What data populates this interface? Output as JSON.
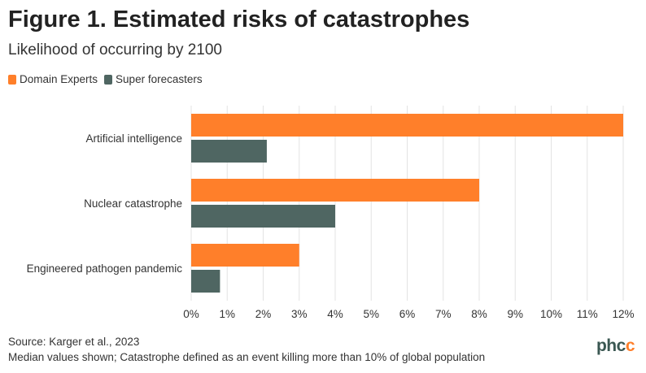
{
  "title": "Figure 1. Estimated risks of catastrophes",
  "subtitle": "Likelihood of occurring by 2100",
  "legend": [
    {
      "label": "Domain Experts",
      "color": "#ff7f2a"
    },
    {
      "label": "Super forecasters",
      "color": "#4f6662"
    }
  ],
  "chart_data": {
    "type": "bar",
    "orientation": "horizontal",
    "title": "Figure 1. Estimated risks of catastrophes",
    "subtitle": "Likelihood of occurring by 2100",
    "categories": [
      "Artificial intelligence",
      "Nuclear catastrophe",
      "Engineered pathogen pandemic"
    ],
    "series": [
      {
        "name": "Domain Experts",
        "color": "#ff7f2a",
        "values": [
          12,
          8,
          3
        ]
      },
      {
        "name": "Super forecasters",
        "color": "#4f6662",
        "values": [
          2.1,
          4,
          0.8
        ]
      }
    ],
    "xlim": [
      0,
      12
    ],
    "xticks": [
      0,
      1,
      2,
      3,
      4,
      5,
      6,
      7,
      8,
      9,
      10,
      11,
      12
    ],
    "xtick_labels": [
      "0%",
      "1%",
      "2%",
      "3%",
      "4%",
      "5%",
      "6%",
      "7%",
      "8%",
      "9%",
      "10%",
      "11%",
      "12%"
    ],
    "xlabel": "",
    "ylabel": "",
    "grid": "vertical",
    "legend_position": "top-left"
  },
  "footer": {
    "source": "Source: Karger et al., 2023",
    "note": "Median values shown; Catastrophe defined as an event killing more than 10% of global population"
  },
  "logo": {
    "text": "phcc"
  }
}
